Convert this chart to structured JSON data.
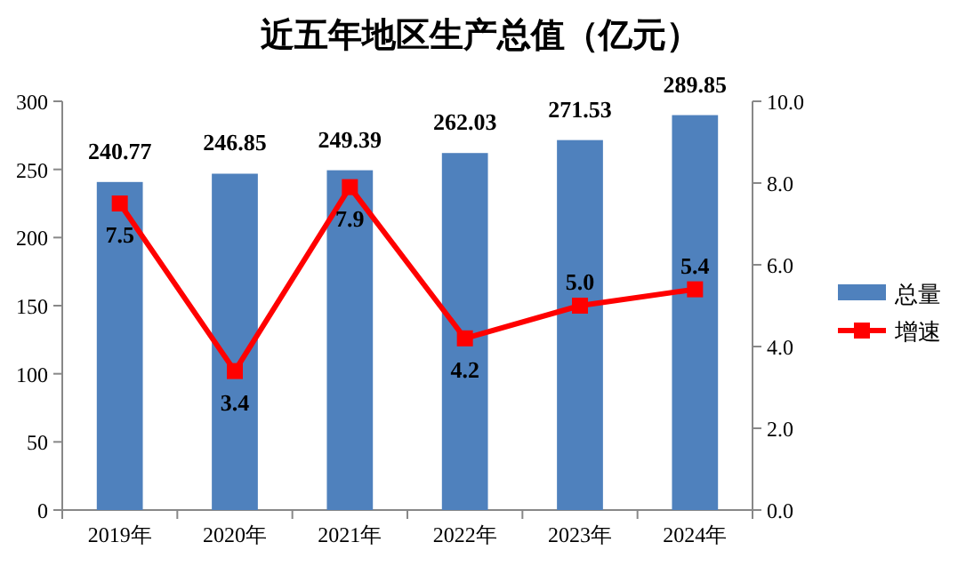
{
  "chart_data": {
    "type": "bar",
    "title": "近五年地区生产总值（亿元）",
    "categories": [
      "2019年",
      "2020年",
      "2021年",
      "2022年",
      "2023年",
      "2024年"
    ],
    "series": [
      {
        "name": "总量",
        "color": "#4f81bd",
        "values": [
          240.77,
          246.85,
          249.39,
          262.03,
          271.53,
          289.85
        ],
        "value_labels": [
          "240.77",
          "246.85",
          "249.39",
          "262.03",
          "271.53",
          "289.85"
        ]
      },
      {
        "name": "增速",
        "type": "line",
        "axis": "y2",
        "color": "#ff0000",
        "marker": "square",
        "values": [
          7.5,
          3.4,
          7.9,
          4.2,
          5.0,
          5.4
        ],
        "value_labels": [
          "7.5",
          "3.4",
          "7.9",
          "4.2",
          "5.0",
          "5.4"
        ]
      }
    ],
    "ylim": [
      0,
      300
    ],
    "yticks": [
      0,
      50,
      100,
      150,
      200,
      250,
      300
    ],
    "y2lim": [
      0,
      10
    ],
    "y2ticks": [
      {
        "value": 0,
        "label": "0.0"
      },
      {
        "value": 2,
        "label": "2.0"
      },
      {
        "value": 4,
        "label": "4.0"
      },
      {
        "value": 6,
        "label": "6.0"
      },
      {
        "value": 8,
        "label": "8.0"
      },
      {
        "value": 10,
        "label": "10.0"
      }
    ],
    "grid": false,
    "legend": "right"
  }
}
